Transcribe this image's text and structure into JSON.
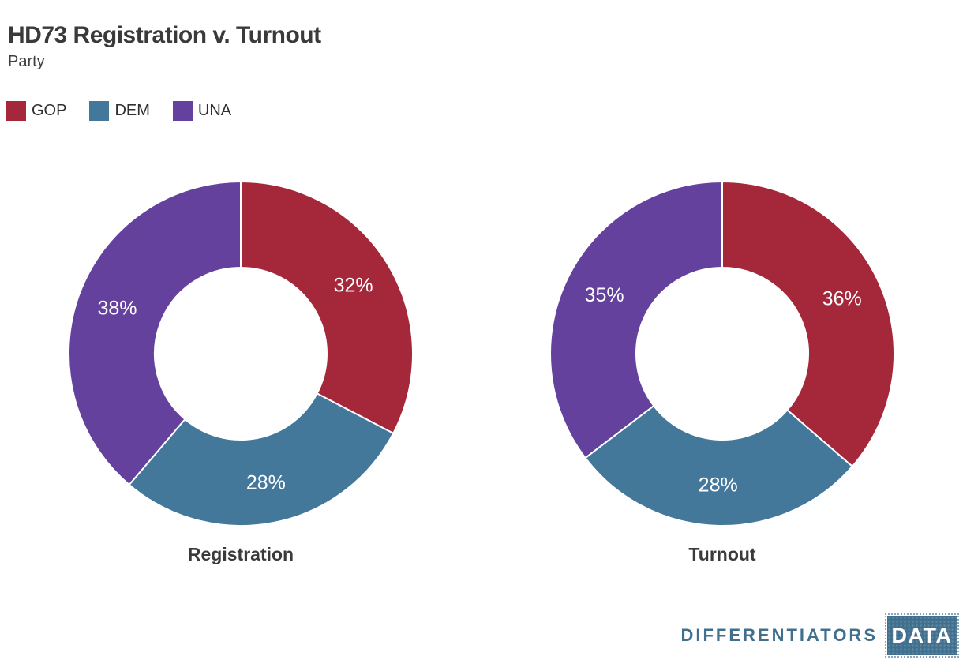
{
  "header": {
    "title": "HD73 Registration v. Turnout",
    "subtitle": "Party"
  },
  "legend": {
    "items": [
      {
        "label": "GOP",
        "color": "#a4283a"
      },
      {
        "label": "DEM",
        "color": "#44789b"
      },
      {
        "label": "UNA",
        "color": "#65419e"
      }
    ]
  },
  "chart_data": [
    {
      "type": "pie",
      "donut": true,
      "title": "Registration",
      "inner_radius_ratio": 0.5,
      "label_radius_ratio": 0.765,
      "start_angle_deg": 0,
      "direction": "clockwise",
      "legend_position": "top-left",
      "slices": [
        {
          "label": "GOP",
          "value": 32,
          "display": "32%",
          "color": "#a4283a"
        },
        {
          "label": "DEM",
          "value": 28,
          "display": "28%",
          "color": "#44789b"
        },
        {
          "label": "UNA",
          "value": 38,
          "display": "38%",
          "color": "#65419e"
        }
      ]
    },
    {
      "type": "pie",
      "donut": true,
      "title": "Turnout",
      "inner_radius_ratio": 0.5,
      "label_radius_ratio": 0.765,
      "start_angle_deg": 0,
      "direction": "clockwise",
      "legend_position": "top-left",
      "slices": [
        {
          "label": "GOP",
          "value": 36,
          "display": "36%",
          "color": "#a4283a"
        },
        {
          "label": "DEM",
          "value": 28,
          "display": "28%",
          "color": "#44789b"
        },
        {
          "label": "UNA",
          "value": 35,
          "display": "35%",
          "color": "#65419e"
        }
      ]
    }
  ],
  "footer": {
    "brand": "DIFFERENTIATORS",
    "brand_box": "DATA",
    "brand_color": "#41708f"
  }
}
